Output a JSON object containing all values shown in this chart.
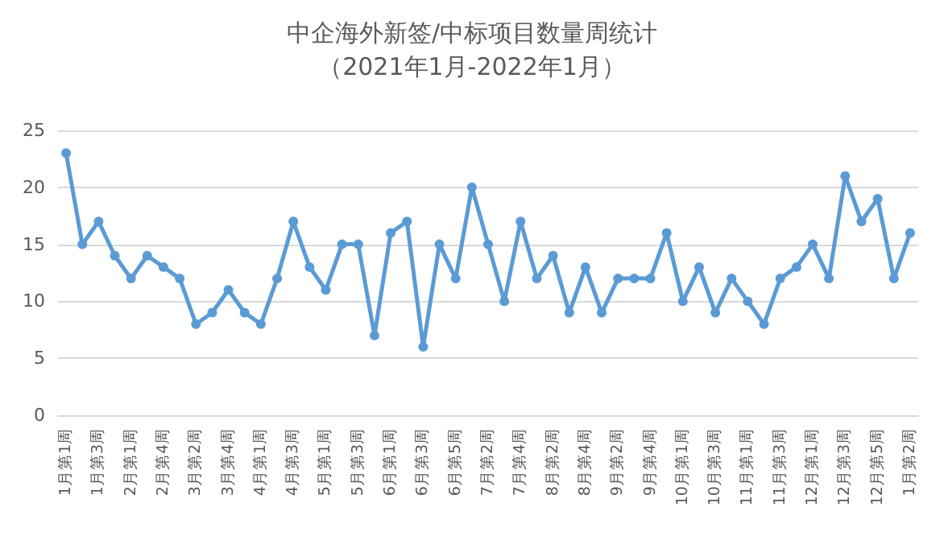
{
  "chart_data": {
    "type": "line",
    "title": "中企海外新签/中标项目数量周统计",
    "subtitle": "（2021年1月-2022年1月）",
    "categories": [
      "1月第1周",
      null,
      "1月第3周",
      null,
      "2月第1周",
      null,
      "2月第4周",
      null,
      "3月第2周",
      null,
      "3月第4周",
      null,
      "4月第1周",
      null,
      "4月第3周",
      null,
      "5月第1周",
      null,
      "5月第3周",
      null,
      "6月第1周",
      null,
      "6月第3周",
      null,
      "6月第5周",
      null,
      "7月第2周",
      null,
      "7月第4周",
      null,
      "8月第2周",
      null,
      "8月第4周",
      null,
      "9月第2周",
      null,
      "9月第4周",
      null,
      "10月第1周",
      null,
      "10月第3周",
      null,
      "11月第1周",
      null,
      "11月第3周",
      null,
      "12月第1周",
      null,
      "12月第3周",
      null,
      "12月第5周",
      null,
      "1月第2周"
    ],
    "series": [
      {
        "color": "#5b9bd5",
        "values": [
          23,
          15,
          17,
          14,
          12,
          14,
          13,
          12,
          8,
          9,
          11,
          9,
          8,
          12,
          17,
          13,
          11,
          15,
          15,
          7,
          16,
          17,
          6,
          15,
          12,
          20,
          15,
          10,
          17,
          12,
          14,
          9,
          13,
          9,
          12,
          12,
          12,
          16,
          10,
          13,
          9,
          12,
          10,
          8,
          12,
          13,
          15,
          12,
          21,
          17,
          19,
          12,
          16
        ]
      }
    ],
    "ylim": [
      0,
      25
    ],
    "yticks": [
      0,
      5,
      10,
      15,
      20,
      25
    ],
    "grid": "y",
    "marker": "circle",
    "line_style": "solid"
  }
}
